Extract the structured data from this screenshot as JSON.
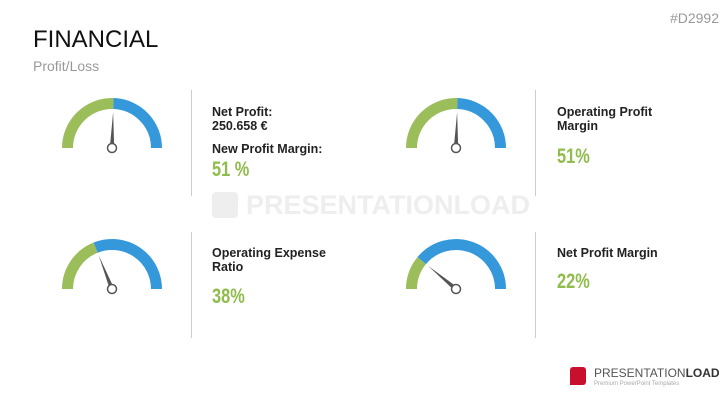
{
  "header": {
    "title": "FINANCIAL",
    "subtitle": "Profit/Loss",
    "code": "#D2992"
  },
  "colors": {
    "green": "#9bbe5a",
    "blue": "#3498db",
    "needle": "#555555"
  },
  "gauges": [
    {
      "value": 51,
      "label1": "Net Profit:",
      "label2": "250.658 €",
      "label3": "New Profit Margin:",
      "display": "51 %"
    },
    {
      "value": 51,
      "label1": "Operating Profit",
      "label2": "Margin",
      "display": "51%"
    },
    {
      "value": 38,
      "label1": "Operating Expense",
      "label2": "Ratio",
      "display": "38%"
    },
    {
      "value": 22,
      "label1": "Net Profit Margin",
      "display": "22%"
    }
  ],
  "watermark": "PRESENTATIONLOAD",
  "logo": {
    "name1": "PRESENTATION",
    "name2": "LOAD",
    "tagline": "Premium PowerPoint Templates"
  }
}
